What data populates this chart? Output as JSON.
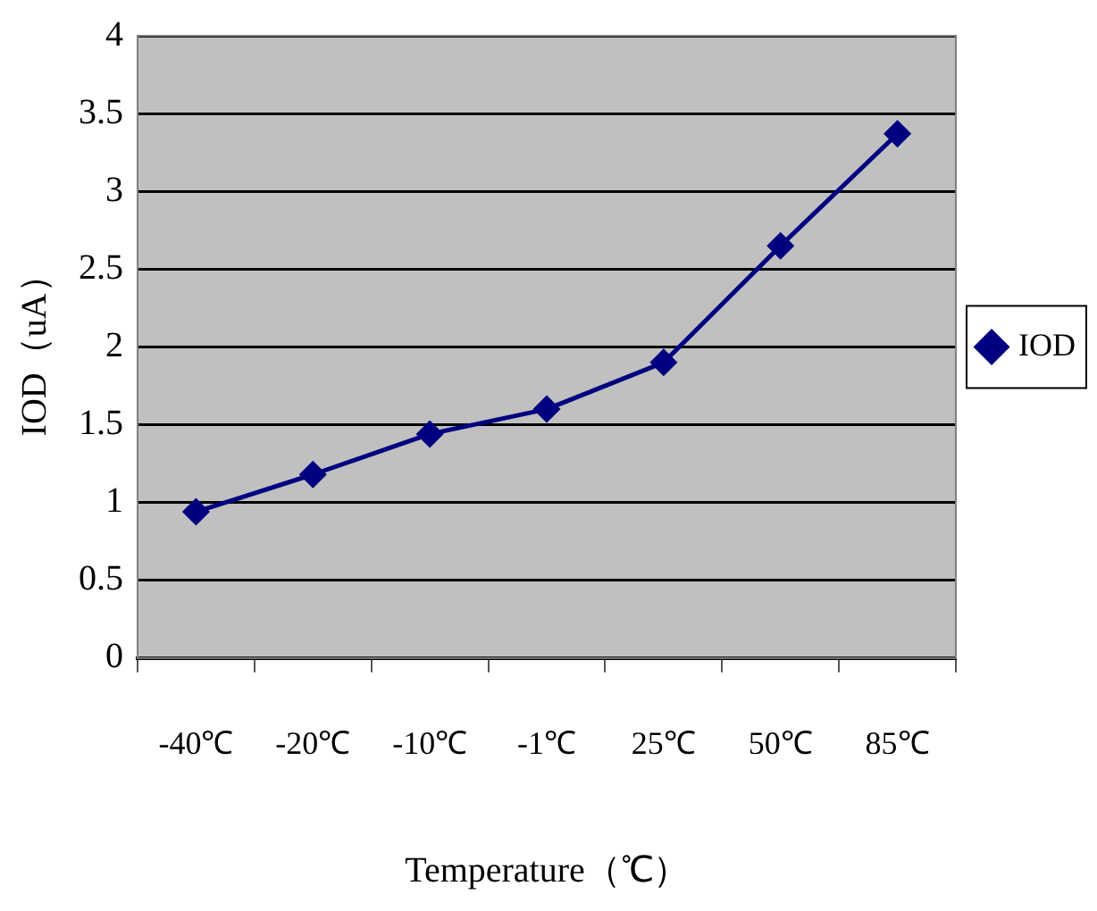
{
  "chart_data": {
    "type": "line",
    "xlabel": "Temperature（℃）",
    "ylabel": "IOD（uA）",
    "categories": [
      "-40℃",
      "-20℃",
      "-10℃",
      "-1℃",
      "25℃",
      "50℃",
      "85℃"
    ],
    "series": [
      {
        "name": "IOD",
        "color": "#000080",
        "values": [
          0.94,
          1.18,
          1.44,
          1.6,
          1.9,
          2.65,
          3.37
        ]
      }
    ],
    "ylim": [
      0,
      4
    ],
    "yticks": [
      0,
      0.5,
      1,
      1.5,
      2,
      2.5,
      3,
      3.5,
      4
    ],
    "grid": "y",
    "legend": "right",
    "marker": "diamond",
    "line_style": "solid"
  }
}
